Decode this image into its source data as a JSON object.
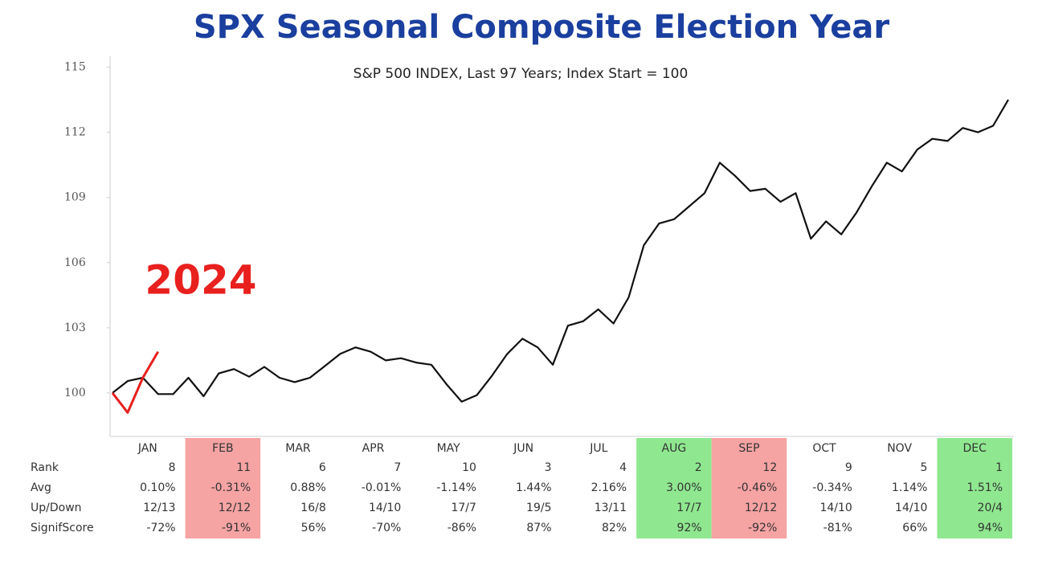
{
  "chart_data": {
    "type": "line",
    "title": "SPX Seasonal Composite Election Year",
    "subtitle": "S&P 500 INDEX, Last 97 Years; Index Start = 100",
    "annotation": "2024",
    "ylim": [
      98,
      115.5
    ],
    "yticks": [
      100,
      103,
      106,
      109,
      112,
      115
    ],
    "series": [
      {
        "name": "Composite",
        "color": "#111111",
        "values": [
          100.0,
          100.55,
          100.7,
          99.95,
          99.95,
          100.7,
          99.85,
          100.9,
          101.1,
          100.75,
          101.2,
          100.7,
          100.5,
          100.7,
          101.25,
          101.8,
          102.1,
          101.9,
          101.5,
          101.6,
          101.4,
          101.3,
          100.4,
          99.6,
          99.9,
          100.8,
          101.8,
          102.5,
          102.1,
          101.3,
          103.1,
          103.3,
          103.85,
          103.2,
          104.4,
          106.8,
          107.8,
          108.0,
          108.6,
          109.2,
          110.6,
          110.0,
          109.3,
          109.4,
          108.8,
          109.2,
          107.1,
          107.9,
          107.3,
          108.3,
          109.5,
          110.6,
          110.2,
          111.2,
          111.7,
          111.6,
          112.2,
          112.0,
          112.3,
          113.5
        ]
      },
      {
        "name": "2024",
        "color": "#e8201e",
        "values": [
          100.0,
          99.1,
          100.7,
          101.9,
          null,
          null,
          null,
          null,
          null,
          null,
          null,
          null,
          null,
          null,
          null,
          null,
          null,
          null,
          null,
          null,
          null,
          null,
          null,
          null,
          null,
          null,
          null,
          null,
          null,
          null,
          null,
          null,
          null,
          null,
          null,
          null,
          null,
          null,
          null,
          null,
          null,
          null,
          null,
          null,
          null,
          null,
          null,
          null,
          null,
          null,
          null,
          null,
          null,
          null,
          null,
          null,
          null,
          null,
          null,
          null
        ]
      }
    ]
  },
  "table": {
    "months": [
      "JAN",
      "FEB",
      "MAR",
      "APR",
      "MAY",
      "JUN",
      "JUL",
      "AUG",
      "SEP",
      "OCT",
      "NOV",
      "DEC"
    ],
    "highlight": [
      null,
      "#f6a3a3",
      null,
      null,
      null,
      null,
      null,
      "#8fe88f",
      "#f6a3a3",
      null,
      null,
      "#8fe88f"
    ],
    "row_labels": [
      "Rank",
      "Avg",
      "Up/Down",
      "SignifScore"
    ],
    "rows": [
      [
        "8",
        "11",
        "6",
        "7",
        "10",
        "3",
        "4",
        "2",
        "12",
        "9",
        "5",
        "1"
      ],
      [
        "0.10%",
        "-0.31%",
        "0.88%",
        "-0.01%",
        "-1.14%",
        "1.44%",
        "2.16%",
        "3.00%",
        "-0.46%",
        "-0.34%",
        "1.14%",
        "1.51%"
      ],
      [
        "12/13",
        "12/12",
        "16/8",
        "14/10",
        "17/7",
        "19/5",
        "13/11",
        "17/7",
        "12/12",
        "14/10",
        "14/10",
        "20/4"
      ],
      [
        "-72%",
        "-91%",
        "56%",
        "-70%",
        "-86%",
        "87%",
        "82%",
        "92%",
        "-92%",
        "-81%",
        "66%",
        "94%"
      ]
    ]
  }
}
